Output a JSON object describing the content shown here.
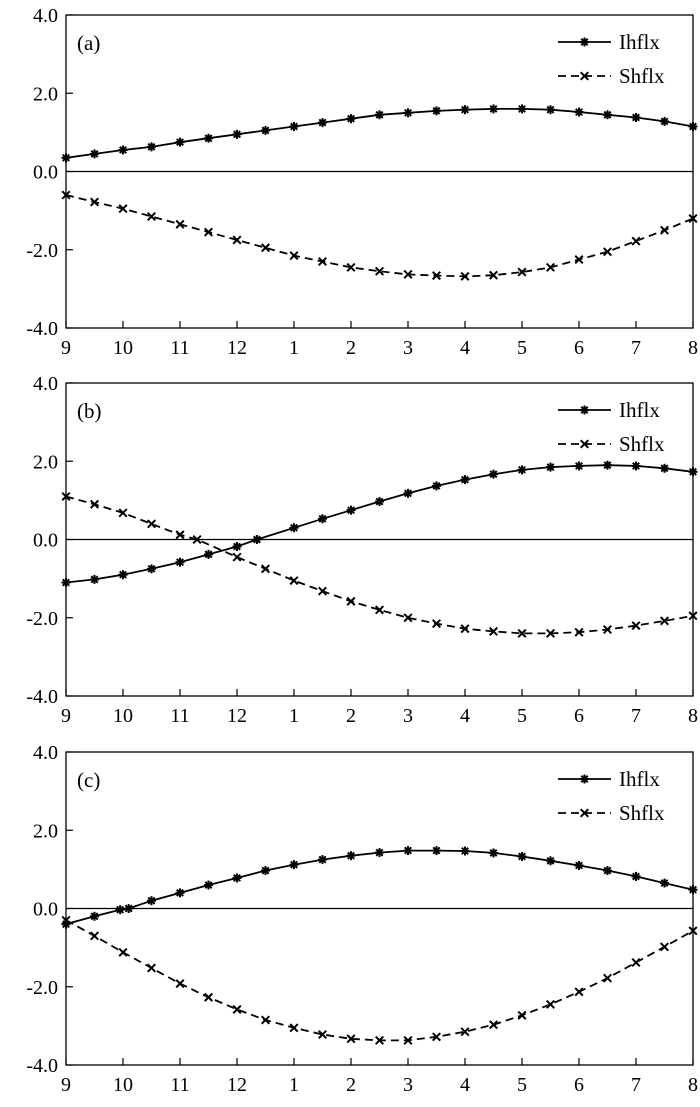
{
  "chart_data": [
    {
      "type": "line",
      "panel_label": "(a)",
      "x": [
        "9",
        "10",
        "11",
        "12",
        "1",
        "2",
        "3",
        "4",
        "5",
        "6",
        "7",
        "8"
      ],
      "ylim": [
        -4.0,
        4.0
      ],
      "yticks": [
        "4.0",
        "2.0",
        "0.0",
        "-2.0",
        "-4.0"
      ],
      "legend_position": "top-right",
      "grid": false,
      "series": [
        {
          "name": "Ihflx",
          "style": "solid",
          "marker": "asterisk",
          "points": [
            [
              0,
              0.35
            ],
            [
              0.5,
              0.45
            ],
            [
              1,
              0.55
            ],
            [
              1.5,
              0.63
            ],
            [
              2,
              0.75
            ],
            [
              2.5,
              0.85
            ],
            [
              3,
              0.95
            ],
            [
              3.5,
              1.05
            ],
            [
              4,
              1.15
            ],
            [
              4.5,
              1.25
            ],
            [
              5,
              1.35
            ],
            [
              5.5,
              1.45
            ],
            [
              6,
              1.5
            ],
            [
              6.5,
              1.55
            ],
            [
              7,
              1.58
            ],
            [
              7.5,
              1.6
            ],
            [
              8,
              1.6
            ],
            [
              8.5,
              1.58
            ],
            [
              9,
              1.52
            ],
            [
              9.5,
              1.45
            ],
            [
              10,
              1.38
            ],
            [
              10.5,
              1.28
            ],
            [
              11,
              1.15
            ]
          ]
        },
        {
          "name": "Shflx",
          "style": "dashed",
          "marker": "x",
          "points": [
            [
              0,
              -0.6
            ],
            [
              0.5,
              -0.78
            ],
            [
              1,
              -0.95
            ],
            [
              1.5,
              -1.15
            ],
            [
              2,
              -1.35
            ],
            [
              2.5,
              -1.55
            ],
            [
              3,
              -1.75
            ],
            [
              3.5,
              -1.95
            ],
            [
              4,
              -2.15
            ],
            [
              4.5,
              -2.3
            ],
            [
              5,
              -2.45
            ],
            [
              5.5,
              -2.55
            ],
            [
              6,
              -2.63
            ],
            [
              6.5,
              -2.66
            ],
            [
              7,
              -2.68
            ],
            [
              7.5,
              -2.65
            ],
            [
              8,
              -2.57
            ],
            [
              8.5,
              -2.45
            ],
            [
              9,
              -2.25
            ],
            [
              9.5,
              -2.05
            ],
            [
              10,
              -1.78
            ],
            [
              10.5,
              -1.5
            ],
            [
              11,
              -1.2
            ]
          ]
        }
      ]
    },
    {
      "type": "line",
      "panel_label": "(b)",
      "x": [
        "9",
        "10",
        "11",
        "12",
        "1",
        "2",
        "3",
        "4",
        "5",
        "6",
        "7",
        "8"
      ],
      "ylim": [
        -4.0,
        4.0
      ],
      "yticks": [
        "4.0",
        "2.0",
        "0.0",
        "-2.0",
        "-4.0"
      ],
      "legend_position": "top-right",
      "grid": false,
      "series": [
        {
          "name": "Ihflx",
          "style": "solid",
          "marker": "asterisk",
          "points": [
            [
              0,
              -1.1
            ],
            [
              0.5,
              -1.02
            ],
            [
              1,
              -0.9
            ],
            [
              1.5,
              -0.75
            ],
            [
              2,
              -0.58
            ],
            [
              2.5,
              -0.38
            ],
            [
              3,
              -0.18
            ],
            [
              3.35,
              0.0
            ],
            [
              4,
              0.3
            ],
            [
              4.5,
              0.53
            ],
            [
              5,
              0.75
            ],
            [
              5.5,
              0.97
            ],
            [
              6,
              1.18
            ],
            [
              6.5,
              1.37
            ],
            [
              7,
              1.53
            ],
            [
              7.5,
              1.67
            ],
            [
              8,
              1.78
            ],
            [
              8.5,
              1.85
            ],
            [
              9,
              1.88
            ],
            [
              9.5,
              1.9
            ],
            [
              10,
              1.88
            ],
            [
              10.5,
              1.82
            ],
            [
              11,
              1.73
            ]
          ]
        },
        {
          "name": "Shflx",
          "style": "dashed",
          "marker": "x",
          "points": [
            [
              0,
              1.1
            ],
            [
              0.5,
              0.9
            ],
            [
              1,
              0.68
            ],
            [
              1.5,
              0.4
            ],
            [
              2,
              0.12
            ],
            [
              2.3,
              0.0
            ],
            [
              3,
              -0.45
            ],
            [
              3.5,
              -0.75
            ],
            [
              4,
              -1.05
            ],
            [
              4.5,
              -1.32
            ],
            [
              5,
              -1.58
            ],
            [
              5.5,
              -1.8
            ],
            [
              6,
              -2.0
            ],
            [
              6.5,
              -2.15
            ],
            [
              7,
              -2.28
            ],
            [
              7.5,
              -2.35
            ],
            [
              8,
              -2.4
            ],
            [
              8.5,
              -2.4
            ],
            [
              9,
              -2.37
            ],
            [
              9.5,
              -2.3
            ],
            [
              10,
              -2.2
            ],
            [
              10.5,
              -2.08
            ],
            [
              11,
              -1.95
            ]
          ]
        }
      ]
    },
    {
      "type": "line",
      "panel_label": "(c)",
      "x": [
        "9",
        "10",
        "11",
        "12",
        "1",
        "2",
        "3",
        "4",
        "5",
        "6",
        "7",
        "8"
      ],
      "ylim": [
        -4.0,
        4.0
      ],
      "yticks": [
        "4.0",
        "2.0",
        "0.0",
        "-2.0",
        "-4.0"
      ],
      "legend_position": "top-right",
      "grid": false,
      "series": [
        {
          "name": "Ihflx",
          "style": "solid",
          "marker": "asterisk",
          "points": [
            [
              0,
              -0.4
            ],
            [
              0.5,
              -0.2
            ],
            [
              0.95,
              -0.03
            ],
            [
              1.1,
              0.0
            ],
            [
              1.5,
              0.2
            ],
            [
              2,
              0.4
            ],
            [
              2.5,
              0.6
            ],
            [
              3,
              0.78
            ],
            [
              3.5,
              0.97
            ],
            [
              4,
              1.12
            ],
            [
              4.5,
              1.25
            ],
            [
              5,
              1.35
            ],
            [
              5.5,
              1.43
            ],
            [
              6,
              1.48
            ],
            [
              6.5,
              1.48
            ],
            [
              7,
              1.47
            ],
            [
              7.5,
              1.42
            ],
            [
              8,
              1.33
            ],
            [
              8.5,
              1.22
            ],
            [
              9,
              1.1
            ],
            [
              9.5,
              0.97
            ],
            [
              10,
              0.82
            ],
            [
              10.5,
              0.65
            ],
            [
              11,
              0.48
            ]
          ]
        },
        {
          "name": "Shflx",
          "style": "dashed",
          "marker": "x",
          "points": [
            [
              0,
              -0.3
            ],
            [
              0.5,
              -0.7
            ],
            [
              1,
              -1.12
            ],
            [
              1.5,
              -1.52
            ],
            [
              2,
              -1.92
            ],
            [
              2.5,
              -2.27
            ],
            [
              3,
              -2.58
            ],
            [
              3.5,
              -2.85
            ],
            [
              4,
              -3.05
            ],
            [
              4.5,
              -3.22
            ],
            [
              5,
              -3.33
            ],
            [
              5.5,
              -3.37
            ],
            [
              6,
              -3.37
            ],
            [
              6.5,
              -3.28
            ],
            [
              7,
              -3.15
            ],
            [
              7.5,
              -2.97
            ],
            [
              8,
              -2.73
            ],
            [
              8.5,
              -2.45
            ],
            [
              9,
              -2.13
            ],
            [
              9.5,
              -1.78
            ],
            [
              10,
              -1.38
            ],
            [
              10.5,
              -0.98
            ],
            [
              11,
              -0.57
            ]
          ]
        }
      ]
    }
  ]
}
